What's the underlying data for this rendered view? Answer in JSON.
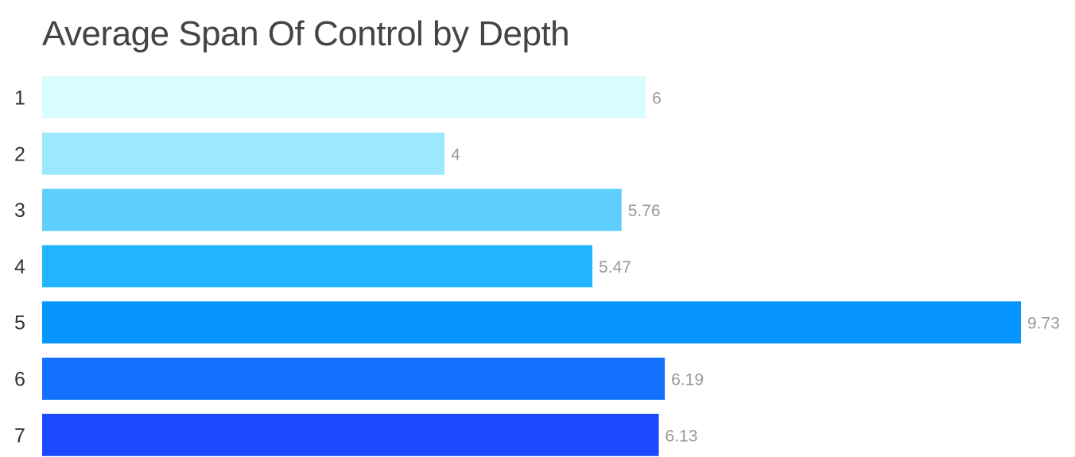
{
  "chart_data": {
    "type": "bar",
    "orientation": "horizontal",
    "title": "Average Span Of Control by Depth",
    "xlabel": "",
    "ylabel": "",
    "categories": [
      "1",
      "2",
      "3",
      "4",
      "5",
      "6",
      "7"
    ],
    "values": [
      6,
      4,
      5.76,
      5.47,
      9.73,
      6.19,
      6.13
    ],
    "value_labels": [
      "6",
      "4",
      "5.76",
      "5.47",
      "9.73",
      "6.19",
      "6.13"
    ],
    "xlim": [
      0,
      9.73
    ],
    "grid": false,
    "legend": "none",
    "colors": [
      "#d9fdff",
      "#9de8ff",
      "#5fcfff",
      "#21b5ff",
      "#0796ff",
      "#1272ff",
      "#1a49ff"
    ]
  }
}
